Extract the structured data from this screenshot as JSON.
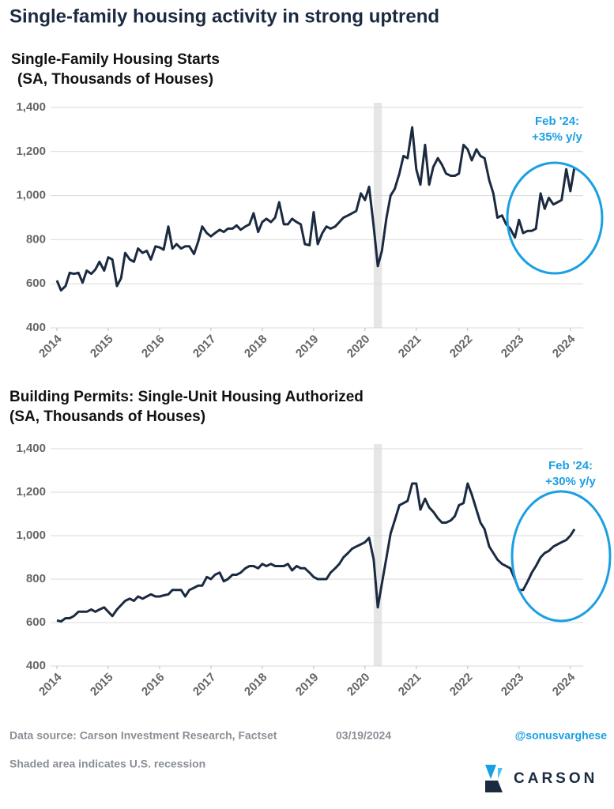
{
  "title": "Single-family housing activity in strong uptrend",
  "chart_data": [
    {
      "type": "line",
      "title": "Single-Family Housing Starts",
      "subtitle": "(SA, Thousands of Houses)",
      "annotation": [
        "Feb '24:",
        "+35% y/y"
      ],
      "recession": [
        2020.17,
        2020.33
      ],
      "xlim": [
        2014,
        2024.25
      ],
      "xticks": [
        2014,
        2015,
        2016,
        2017,
        2018,
        2019,
        2020,
        2021,
        2022,
        2023,
        2024
      ],
      "ylim": [
        400,
        1400
      ],
      "yticks": [
        400,
        600,
        800,
        {
          "value": 1000,
          "label": "1,000"
        },
        {
          "value": 1200,
          "label": "1,200"
        },
        {
          "value": 1400,
          "label": "1,400"
        }
      ],
      "grid": true,
      "series": [
        {
          "name": "Single-Family Housing Starts",
          "color": "#1b2a41",
          "x": [
            2014.0,
            2014.08,
            2014.17,
            2014.25,
            2014.33,
            2014.42,
            2014.5,
            2014.58,
            2014.67,
            2014.75,
            2014.83,
            2014.92,
            2015.0,
            2015.08,
            2015.17,
            2015.25,
            2015.33,
            2015.42,
            2015.5,
            2015.58,
            2015.67,
            2015.75,
            2015.83,
            2015.92,
            2016.0,
            2016.08,
            2016.17,
            2016.25,
            2016.33,
            2016.42,
            2016.5,
            2016.58,
            2016.67,
            2016.75,
            2016.83,
            2016.92,
            2017.0,
            2017.08,
            2017.17,
            2017.25,
            2017.33,
            2017.42,
            2017.5,
            2017.58,
            2017.67,
            2017.75,
            2017.83,
            2017.92,
            2018.0,
            2018.08,
            2018.17,
            2018.25,
            2018.33,
            2018.42,
            2018.5,
            2018.58,
            2018.67,
            2018.75,
            2018.83,
            2018.92,
            2019.0,
            2019.08,
            2019.17,
            2019.25,
            2019.33,
            2019.42,
            2019.5,
            2019.58,
            2019.67,
            2019.75,
            2019.83,
            2019.92,
            2020.0,
            2020.08,
            2020.17,
            2020.25,
            2020.33,
            2020.42,
            2020.5,
            2020.58,
            2020.67,
            2020.75,
            2020.83,
            2020.92,
            2021.0,
            2021.08,
            2021.17,
            2021.25,
            2021.33,
            2021.42,
            2021.5,
            2021.58,
            2021.67,
            2021.75,
            2021.83,
            2021.92,
            2022.0,
            2022.08,
            2022.17,
            2022.25,
            2022.33,
            2022.42,
            2022.5,
            2022.58,
            2022.67,
            2022.75,
            2022.83,
            2022.92,
            2023.0,
            2023.08,
            2023.17,
            2023.25,
            2023.33,
            2023.42,
            2023.5,
            2023.58,
            2023.67,
            2023.75,
            2023.83,
            2023.92,
            2024.0,
            2024.08
          ],
          "values": [
            615,
            570,
            590,
            650,
            645,
            650,
            605,
            660,
            645,
            665,
            700,
            660,
            720,
            710,
            590,
            625,
            740,
            710,
            700,
            760,
            740,
            750,
            710,
            770,
            765,
            755,
            860,
            760,
            780,
            760,
            770,
            770,
            735,
            790,
            860,
            830,
            815,
            830,
            845,
            835,
            850,
            850,
            865,
            845,
            860,
            870,
            920,
            835,
            880,
            895,
            880,
            900,
            970,
            870,
            870,
            895,
            880,
            870,
            780,
            775,
            925,
            780,
            830,
            860,
            850,
            860,
            880,
            900,
            910,
            920,
            930,
            1010,
            980,
            1040,
            860,
            680,
            750,
            900,
            1000,
            1030,
            1100,
            1180,
            1170,
            1310,
            1120,
            1050,
            1230,
            1050,
            1130,
            1170,
            1140,
            1100,
            1090,
            1090,
            1100,
            1230,
            1210,
            1160,
            1210,
            1180,
            1170,
            1070,
            1010,
            900,
            910,
            870,
            850,
            810,
            890,
            830,
            840,
            840,
            850,
            1010,
            940,
            990,
            960,
            970,
            980,
            1120,
            1020,
            1130
          ]
        }
      ]
    },
    {
      "type": "line",
      "title": "Building Permits: Single-Unit Housing Authorized",
      "subtitle": "(SA, Thousands of Houses)",
      "annotation": [
        "Feb '24:",
        "+30% y/y"
      ],
      "recession": [
        2020.17,
        2020.33
      ],
      "xlim": [
        2014,
        2024.25
      ],
      "xticks": [
        2014,
        2015,
        2016,
        2017,
        2018,
        2019,
        2020,
        2021,
        2022,
        2023,
        2024
      ],
      "ylim": [
        400,
        1400
      ],
      "yticks": [
        400,
        600,
        800,
        {
          "value": 1000,
          "label": "1,000"
        },
        {
          "value": 1200,
          "label": "1,200"
        },
        {
          "value": 1400,
          "label": "1,400"
        }
      ],
      "grid": true,
      "series": [
        {
          "name": "Building Permits: Single-Unit Housing Authorized",
          "color": "#1b2a41",
          "x": [
            2014.0,
            2014.08,
            2014.17,
            2014.25,
            2014.33,
            2014.42,
            2014.5,
            2014.58,
            2014.67,
            2014.75,
            2014.83,
            2014.92,
            2015.0,
            2015.08,
            2015.17,
            2015.25,
            2015.33,
            2015.42,
            2015.5,
            2015.58,
            2015.67,
            2015.75,
            2015.83,
            2015.92,
            2016.0,
            2016.08,
            2016.17,
            2016.25,
            2016.33,
            2016.42,
            2016.5,
            2016.58,
            2016.67,
            2016.75,
            2016.83,
            2016.92,
            2017.0,
            2017.08,
            2017.17,
            2017.25,
            2017.33,
            2017.42,
            2017.5,
            2017.58,
            2017.67,
            2017.75,
            2017.83,
            2017.92,
            2018.0,
            2018.08,
            2018.17,
            2018.25,
            2018.33,
            2018.42,
            2018.5,
            2018.58,
            2018.67,
            2018.75,
            2018.83,
            2018.92,
            2019.0,
            2019.08,
            2019.17,
            2019.25,
            2019.33,
            2019.42,
            2019.5,
            2019.58,
            2019.67,
            2019.75,
            2019.83,
            2019.92,
            2020.0,
            2020.08,
            2020.17,
            2020.25,
            2020.33,
            2020.42,
            2020.5,
            2020.58,
            2020.67,
            2020.75,
            2020.83,
            2020.92,
            2021.0,
            2021.08,
            2021.17,
            2021.25,
            2021.33,
            2021.42,
            2021.5,
            2021.58,
            2021.67,
            2021.75,
            2021.83,
            2021.92,
            2022.0,
            2022.08,
            2022.17,
            2022.25,
            2022.33,
            2022.42,
            2022.5,
            2022.58,
            2022.67,
            2022.75,
            2022.83,
            2022.92,
            2023.0,
            2023.08,
            2023.17,
            2023.25,
            2023.33,
            2023.42,
            2023.5,
            2023.58,
            2023.67,
            2023.75,
            2023.83,
            2023.92,
            2024.0,
            2024.08
          ],
          "values": [
            610,
            605,
            620,
            620,
            630,
            650,
            650,
            650,
            660,
            650,
            660,
            670,
            650,
            630,
            660,
            680,
            700,
            710,
            700,
            720,
            710,
            720,
            730,
            720,
            720,
            725,
            730,
            750,
            750,
            750,
            720,
            750,
            760,
            770,
            770,
            810,
            800,
            820,
            830,
            790,
            800,
            820,
            820,
            830,
            850,
            860,
            860,
            850,
            870,
            860,
            870,
            860,
            860,
            860,
            870,
            840,
            860,
            850,
            850,
            830,
            810,
            800,
            800,
            800,
            830,
            850,
            870,
            900,
            920,
            940,
            950,
            960,
            970,
            990,
            890,
            670,
            780,
            900,
            1010,
            1070,
            1140,
            1150,
            1160,
            1240,
            1240,
            1120,
            1170,
            1130,
            1110,
            1080,
            1060,
            1060,
            1070,
            1090,
            1140,
            1150,
            1240,
            1190,
            1120,
            1060,
            1030,
            950,
            920,
            890,
            870,
            860,
            850,
            800,
            750,
            750,
            790,
            830,
            860,
            900,
            920,
            930,
            950,
            960,
            970,
            980,
            1000,
            1030
          ]
        }
      ]
    }
  ],
  "footer": {
    "source": "Data source: Carson Investment Research, Factset",
    "date": "03/19/2024",
    "handle": "@sonusvarghese",
    "note": "Shaded area indicates U.S. recession",
    "logo": "CARSON"
  }
}
